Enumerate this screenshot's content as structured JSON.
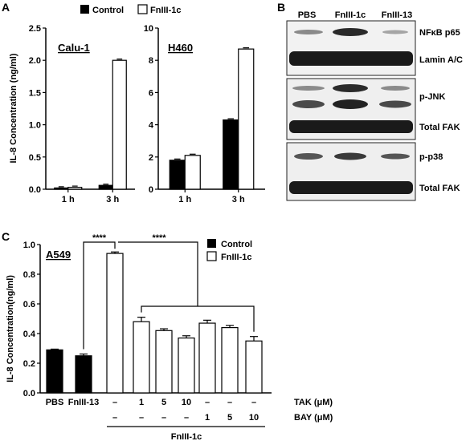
{
  "panels": {
    "a": "A",
    "b": "B",
    "c": "C"
  },
  "legend_top": {
    "control": "Control",
    "fn": "FnIII-1c"
  },
  "legend_c": {
    "control": "Control",
    "fn": "FnIII-1c"
  },
  "chart_data": [
    {
      "type": "bar",
      "title": "Calu-1",
      "ylabel": "IL-8 Concentration (ng/ml)",
      "categories": [
        "1 h",
        "3 h"
      ],
      "ylim": [
        0,
        2.5
      ],
      "yticks": [
        "0.0",
        "0.5",
        "1.0",
        "1.5",
        "2.0",
        "2.5"
      ],
      "series": [
        {
          "name": "Control",
          "values": [
            0.02,
            0.06
          ],
          "color": "#000000"
        },
        {
          "name": "FnIII-1c",
          "values": [
            0.03,
            2.0
          ],
          "color": "#ffffff"
        }
      ]
    },
    {
      "type": "bar",
      "title": "H460",
      "categories": [
        "1 h",
        "3 h"
      ],
      "ylim": [
        0,
        10
      ],
      "yticks": [
        "0",
        "2",
        "4",
        "6",
        "8",
        "10"
      ],
      "series": [
        {
          "name": "Control",
          "values": [
            1.8,
            4.3
          ],
          "color": "#000000"
        },
        {
          "name": "FnIII-1c",
          "values": [
            2.1,
            8.7
          ],
          "color": "#ffffff"
        }
      ]
    },
    {
      "type": "bar",
      "title": "A549",
      "ylabel": "IL-8 Concentration(ng/ml)",
      "ylim": [
        0,
        1.0
      ],
      "yticks": [
        "0.0",
        "0.2",
        "0.4",
        "0.6",
        "0.8",
        "1.0"
      ],
      "categories": [
        "PBS",
        "FnIII-13",
        "–",
        "1",
        "5",
        "10",
        "–",
        "–",
        "–"
      ],
      "values": [
        0.29,
        0.25,
        0.94,
        0.48,
        0.42,
        0.37,
        0.47,
        0.44,
        0.35
      ],
      "errors": [
        0.005,
        0.012,
        0.01,
        0.03,
        0.012,
        0.015,
        0.02,
        0.015,
        0.03
      ],
      "fills": [
        "#000000",
        "#000000",
        "#ffffff",
        "#ffffff",
        "#ffffff",
        "#ffffff",
        "#ffffff",
        "#ffffff",
        "#ffffff"
      ],
      "tak_row": {
        "label": "TAK (μM)",
        "values": [
          "–",
          "1",
          "5",
          "10",
          "–",
          "–",
          "–"
        ]
      },
      "bay_row": {
        "label": "BAY (μM)",
        "values": [
          "–",
          "–",
          "–",
          "–",
          "1",
          "5",
          "10"
        ]
      },
      "group_label": "FnIII-1c",
      "significance": "****"
    }
  ],
  "blot": {
    "lanes": [
      "PBS",
      "FnIII-1c",
      "FnIII-13"
    ],
    "rows": [
      "NFκB p65",
      "Lamin A/C",
      "p-JNK",
      "Total FAK",
      "p-p38",
      "Total FAK"
    ]
  }
}
